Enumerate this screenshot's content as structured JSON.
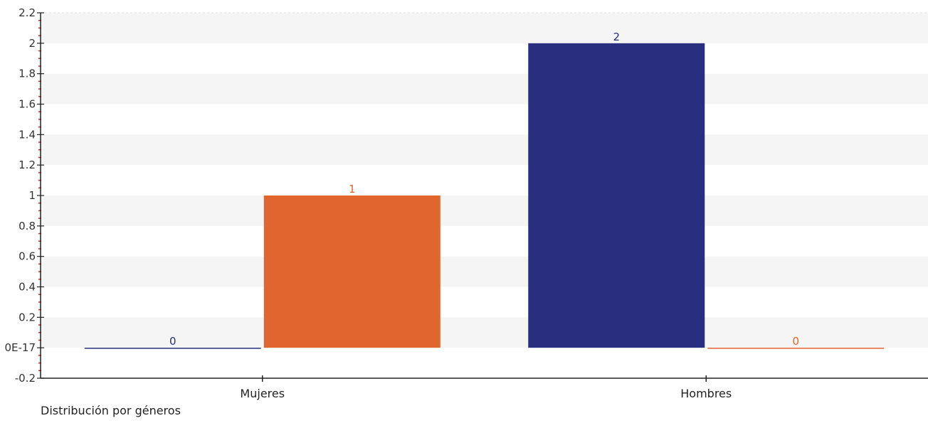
{
  "chart_data": {
    "type": "bar",
    "title": "Distribución por géneros",
    "xlabel": "",
    "ylabel": "",
    "categories": [
      "Mujeres",
      "Hombres"
    ],
    "series": [
      {
        "color": "#2a2e7e",
        "values": [
          0,
          2
        ],
        "labels": [
          "0",
          "2"
        ]
      },
      {
        "color": "#e0652e",
        "values": [
          1,
          0
        ],
        "labels": [
          "1",
          "0"
        ]
      }
    ],
    "ylim": [
      -0.2,
      2.2
    ],
    "y_ticks": [
      -0.2,
      0,
      0.2,
      0.4,
      0.6,
      0.8,
      1,
      1.2,
      1.4,
      1.6,
      1.8,
      2,
      2.2
    ],
    "y_tick_labels": [
      "-0.2",
      "0E-17",
      "0.2",
      "0.4",
      "0.6",
      "0.8",
      "1",
      "1.2",
      "1.4",
      "1.6",
      "1.8",
      "2",
      "2.2"
    ],
    "grid": "alternating horizontal bands",
    "legend": "none"
  }
}
